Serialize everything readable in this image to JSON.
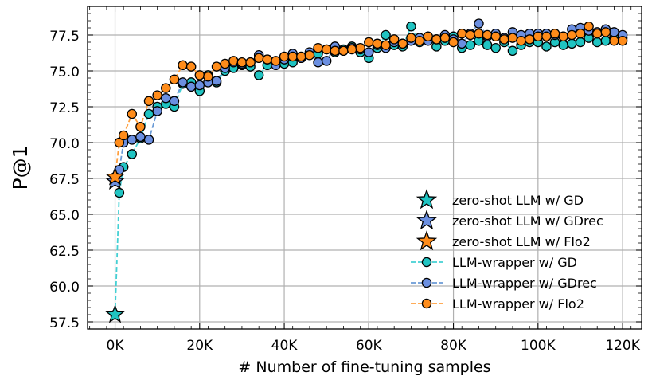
{
  "chart_data": {
    "type": "scatter",
    "xlabel": "# Number of fine-tuning samples",
    "ylabel": "P@1",
    "xlim": [
      -6500,
      124500
    ],
    "ylim": [
      57.0,
      79.5
    ],
    "x_ticks": [
      0,
      20000,
      40000,
      60000,
      80000,
      100000,
      120000
    ],
    "x_tick_labels": [
      "0K",
      "20K",
      "40K",
      "60K",
      "80K",
      "100K",
      "120K"
    ],
    "y_ticks": [
      57.5,
      60.0,
      62.5,
      65.0,
      67.5,
      70.0,
      72.5,
      75.0,
      77.5
    ],
    "y_tick_labels": [
      "57.5",
      "60.0",
      "62.5",
      "65.0",
      "67.5",
      "70.0",
      "72.5",
      "75.0",
      "77.5"
    ],
    "grid": true,
    "legend_position": "lower-right",
    "zero_shot": [
      {
        "name": "zero-shot LLM w/ GD",
        "x": 0,
        "y": 58.0,
        "color": "#20c4c2"
      },
      {
        "name": "zero-shot LLM w/ GDrec",
        "x": 0,
        "y": 67.3,
        "color": "#6b8fe0"
      },
      {
        "name": "zero-shot LLM w/ Flo2",
        "x": 0,
        "y": 67.6,
        "color": "#ff8c1a"
      }
    ],
    "series": [
      {
        "name": "LLM-wrapper w/ GD",
        "color": "#20c4c2",
        "line_color": "#44d0d4",
        "x": [
          0,
          1000,
          2000,
          4000,
          6000,
          8000,
          10000,
          12000,
          14000,
          16000,
          18000,
          20000,
          22000,
          24000,
          26000,
          28000,
          30000,
          32000,
          34000,
          36000,
          38000,
          40000,
          42000,
          44000,
          46000,
          48000,
          50000,
          52000,
          54000,
          56000,
          58000,
          60000,
          62000,
          64000,
          66000,
          68000,
          70000,
          72000,
          74000,
          76000,
          78000,
          80000,
          82000,
          84000,
          86000,
          88000,
          90000,
          92000,
          94000,
          96000,
          98000,
          100000,
          102000,
          104000,
          106000,
          108000,
          110000,
          112000,
          114000,
          116000,
          118000,
          120000
        ],
        "y": [
          58.0,
          66.5,
          68.3,
          69.2,
          70.3,
          72.0,
          72.5,
          72.7,
          72.5,
          74.1,
          74.2,
          73.6,
          74.7,
          74.2,
          75.0,
          75.2,
          75.4,
          75.3,
          74.7,
          75.4,
          75.6,
          75.5,
          75.6,
          75.9,
          76.2,
          76.2,
          76.5,
          76.3,
          76.5,
          76.7,
          76.3,
          75.9,
          76.6,
          77.5,
          76.8,
          76.7,
          78.1,
          77.0,
          77.2,
          76.7,
          77.1,
          77.4,
          76.6,
          76.8,
          77.1,
          76.8,
          76.6,
          77.0,
          76.4,
          76.8,
          77.0,
          77.0,
          76.7,
          77.0,
          76.8,
          76.9,
          77.0,
          77.3,
          77.0,
          77.1,
          77.3,
          77.3
        ]
      },
      {
        "name": "LLM-wrapper w/ GDrec",
        "color": "#6b8fe0",
        "line_color": "#6b9bd6",
        "x": [
          0,
          1000,
          2000,
          4000,
          6000,
          8000,
          10000,
          12000,
          14000,
          16000,
          18000,
          20000,
          22000,
          24000,
          26000,
          28000,
          30000,
          32000,
          34000,
          36000,
          38000,
          40000,
          42000,
          44000,
          46000,
          48000,
          50000,
          52000,
          54000,
          56000,
          58000,
          60000,
          62000,
          64000,
          66000,
          68000,
          70000,
          72000,
          74000,
          76000,
          78000,
          80000,
          82000,
          84000,
          86000,
          88000,
          90000,
          92000,
          94000,
          96000,
          98000,
          100000,
          102000,
          104000,
          106000,
          108000,
          110000,
          112000,
          114000,
          116000,
          118000,
          120000
        ],
        "y": [
          67.3,
          68.1,
          70.0,
          70.2,
          70.4,
          70.2,
          72.2,
          73.1,
          72.9,
          74.2,
          73.9,
          74.0,
          74.2,
          74.3,
          75.2,
          75.6,
          75.5,
          75.6,
          76.1,
          75.8,
          75.4,
          75.8,
          76.2,
          75.9,
          76.3,
          75.6,
          75.7,
          76.7,
          76.4,
          76.6,
          76.5,
          76.3,
          76.8,
          76.6,
          77.0,
          76.9,
          77.1,
          77.3,
          77.1,
          77.2,
          77.5,
          77.2,
          76.9,
          77.6,
          78.3,
          77.4,
          77.6,
          77.3,
          77.7,
          77.5,
          77.6,
          77.6,
          77.6,
          77.5,
          77.4,
          77.9,
          78.0,
          77.8,
          77.7,
          77.9,
          77.7,
          77.5
        ]
      },
      {
        "name": "LLM-wrapper w/ Flo2",
        "color": "#ff8c1a",
        "line_color": "#ffa040",
        "x": [
          0,
          1000,
          2000,
          4000,
          6000,
          8000,
          10000,
          12000,
          14000,
          16000,
          18000,
          20000,
          22000,
          24000,
          26000,
          28000,
          30000,
          32000,
          34000,
          36000,
          38000,
          40000,
          42000,
          44000,
          46000,
          48000,
          50000,
          52000,
          54000,
          56000,
          58000,
          60000,
          62000,
          64000,
          66000,
          68000,
          70000,
          72000,
          74000,
          76000,
          78000,
          80000,
          82000,
          84000,
          86000,
          88000,
          90000,
          92000,
          94000,
          96000,
          98000,
          100000,
          102000,
          104000,
          106000,
          108000,
          110000,
          112000,
          114000,
          116000,
          118000,
          120000
        ],
        "y": [
          67.6,
          70.0,
          70.5,
          72.0,
          71.1,
          72.9,
          73.3,
          73.8,
          74.4,
          75.4,
          75.3,
          74.7,
          74.6,
          75.3,
          75.5,
          75.7,
          75.6,
          75.6,
          75.9,
          75.8,
          75.7,
          76.0,
          76.0,
          76.0,
          76.1,
          76.6,
          76.5,
          76.4,
          76.4,
          76.5,
          76.6,
          77.0,
          76.9,
          76.8,
          77.2,
          76.9,
          77.3,
          77.1,
          77.4,
          77.2,
          77.3,
          77.0,
          77.6,
          77.5,
          77.6,
          77.5,
          77.4,
          77.2,
          77.3,
          77.1,
          77.2,
          77.4,
          77.4,
          77.6,
          77.4,
          77.5,
          77.6,
          78.1,
          77.6,
          77.7,
          77.1,
          77.1
        ]
      }
    ]
  }
}
